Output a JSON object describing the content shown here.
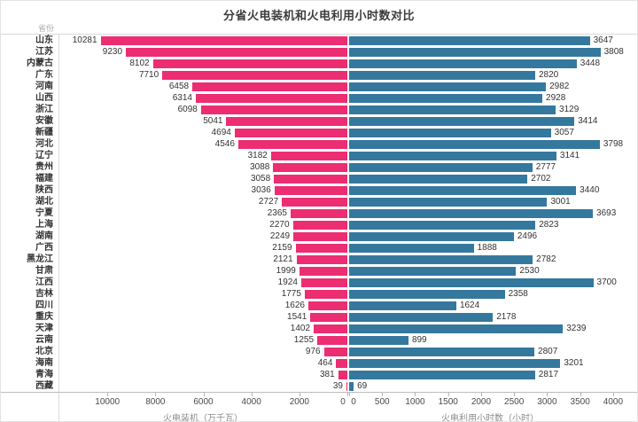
{
  "title": "分省火电装机和火电利用小时数对比",
  "colors": {
    "installed_bar": "#EC2D72",
    "hours_bar": "#35789E"
  },
  "chart_data": {
    "type": "bar",
    "variant": "diverging-horizontal-bidirectional",
    "title": "分省火电装机和火电利用小时数对比",
    "category_axis_label": "省份",
    "grid": false,
    "legend": "none",
    "categories": [
      "山东",
      "江苏",
      "内蒙古",
      "广东",
      "河南",
      "山西",
      "浙江",
      "安徽",
      "新疆",
      "河北",
      "辽宁",
      "贵州",
      "福建",
      "陕西",
      "湖北",
      "宁夏",
      "上海",
      "湖南",
      "广西",
      "黑龙江",
      "甘肃",
      "江西",
      "吉林",
      "四川",
      "重庆",
      "天津",
      "云南",
      "北京",
      "海南",
      "青海",
      "西藏"
    ],
    "series": [
      {
        "name": "火电装机（万千瓦）",
        "side": "left",
        "color": "#EC2D72",
        "values": [
          10281,
          9230,
          8102,
          7710,
          6458,
          6314,
          6098,
          5041,
          4694,
          4546,
          3182,
          3088,
          3058,
          3036,
          2727,
          2365,
          2270,
          2249,
          2159,
          2121,
          1999,
          1924,
          1775,
          1626,
          1541,
          1402,
          1255,
          976,
          464,
          381,
          39
        ]
      },
      {
        "name": "火电利用小时数（小时）",
        "side": "right",
        "color": "#35789E",
        "values": [
          3647,
          3808,
          3448,
          2820,
          2982,
          2928,
          3129,
          3414,
          3057,
          3798,
          3141,
          2777,
          2702,
          3440,
          3001,
          3693,
          2823,
          2496,
          1888,
          2782,
          2530,
          3700,
          2358,
          1624,
          2178,
          3239,
          899,
          2807,
          3201,
          2817,
          69
        ]
      }
    ],
    "axes": {
      "left": {
        "title": "火电装机（万千瓦）",
        "ticks": [
          10000,
          8000,
          6000,
          4000,
          2000,
          0
        ],
        "range": [
          0,
          12000
        ],
        "direction": "right-to-left"
      },
      "right": {
        "title": "火电利用小时数（小时）",
        "ticks": [
          0,
          500,
          1000,
          1500,
          2000,
          2500,
          3000,
          3500,
          4000
        ],
        "range": [
          0,
          4270
        ],
        "direction": "left-to-right"
      }
    }
  }
}
